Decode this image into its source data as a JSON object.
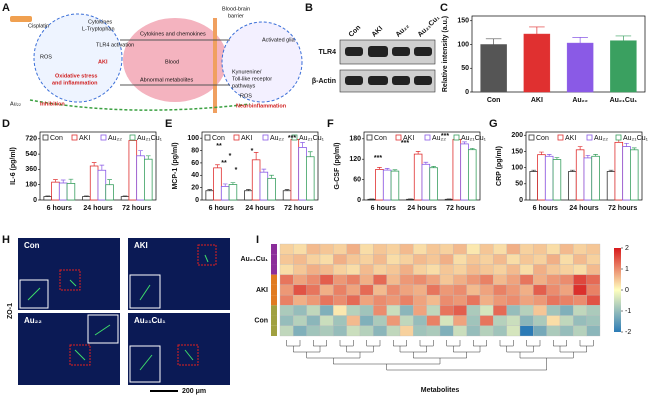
{
  "panels": {
    "letters": [
      "A",
      "B",
      "C",
      "D",
      "E",
      "F",
      "G",
      "H",
      "I"
    ],
    "a": {
      "cisplatin": "Cisplatin",
      "cytokines": "Cytokines",
      "tryptophan": "L-Tryptophan",
      "tlr4": "TLR4 activation",
      "ros1": "ROS",
      "aki": "AKI",
      "oxidative": "Oxidative stress",
      "inflammation": "and inflammation",
      "au22": "Au₂₂",
      "inhibition": "Inhibition",
      "chemokines": "Cytokines and chemokines",
      "blood": "Blood",
      "metabolites": "Abnormal metabolites",
      "bbb1": "Blood-brain",
      "bbb2": "barrier",
      "glia": "Activated glia",
      "path1": "Kynurenine/",
      "path2": "Toll-like receptor",
      "path3": "pathways",
      "ros2": "ROS",
      "neuro": "Neuroinflammation"
    },
    "b": {
      "lanes": [
        "Con",
        "AKI",
        "Au₂₂",
        "Au₂₁Cu₁"
      ],
      "rows": [
        "TLR4",
        "β-Actin"
      ]
    },
    "h": {
      "images": [
        "Con",
        "AKI",
        "Au₂₂",
        "Au₂₁Cu₁"
      ],
      "stain": "ZO-1",
      "scale": "200 μm"
    }
  },
  "chart_data": [
    {
      "type": "bar",
      "ylabel": "Relative intensity (a.u.)",
      "categories": [
        "Con",
        "AKI",
        "Au₂₂",
        "Au₂₁Cu₁"
      ],
      "values": [
        100,
        122,
        103,
        108
      ],
      "errors": [
        12,
        15,
        12,
        10
      ],
      "colors": [
        "#555555",
        "#e03030",
        "#8a5ae6",
        "#3aa060"
      ],
      "ylim": [
        0,
        160
      ],
      "yticks": [
        0,
        50,
        100,
        150
      ]
    },
    {
      "type": "bar",
      "ylabel": "IL-6 (pg/ml)",
      "categories": [
        "6 hours",
        "24 hours",
        "72 hours"
      ],
      "ylim": [
        0,
        800
      ],
      "yticks": [
        0,
        180,
        360,
        540,
        720
      ],
      "series": [
        {
          "name": "Con",
          "color": "#333333",
          "values": [
            40,
            40,
            40
          ],
          "errors": [
            8,
            8,
            8
          ]
        },
        {
          "name": "AKI",
          "color": "#e03030",
          "values": [
            210,
            400,
            700
          ],
          "errors": [
            30,
            40,
            30
          ]
        },
        {
          "name": "Au₂₂",
          "color": "#8a5ae6",
          "values": [
            200,
            350,
            520
          ],
          "errors": [
            35,
            60,
            60
          ]
        },
        {
          "name": "Au₂₁Cu₁",
          "color": "#3aa060",
          "values": [
            195,
            180,
            480
          ],
          "errors": [
            50,
            60,
            40
          ]
        }
      ]
    },
    {
      "type": "bar",
      "ylabel": "MCP-1 (pg/ml)",
      "categories": [
        "6 hours",
        "24 hours",
        "72 hours"
      ],
      "ylim": [
        0,
        110
      ],
      "yticks": [
        0,
        20,
        40,
        60,
        80,
        100
      ],
      "annotations": [
        "**",
        "*",
        "**",
        "*",
        "*",
        "***"
      ],
      "series": [
        {
          "name": "Con",
          "color": "#333333",
          "values": [
            15,
            15,
            15
          ],
          "errors": [
            2,
            2,
            2
          ]
        },
        {
          "name": "AKI",
          "color": "#e03030",
          "values": [
            52,
            65,
            98
          ],
          "errors": [
            5,
            12,
            6
          ]
        },
        {
          "name": "Au₂₂",
          "color": "#8a5ae6",
          "values": [
            22,
            45,
            85
          ],
          "errors": [
            4,
            5,
            8
          ]
        },
        {
          "name": "Au₂₁Cu₁",
          "color": "#3aa060",
          "values": [
            25,
            35,
            70
          ],
          "errors": [
            3,
            5,
            8
          ]
        }
      ]
    },
    {
      "type": "bar",
      "ylabel": "G-CSF (pg/ml)",
      "categories": [
        "6 hours",
        "24 hours",
        "72 hours"
      ],
      "ylim": [
        0,
        200
      ],
      "yticks": [
        0,
        60,
        120,
        180
      ],
      "annotations": [
        "***",
        "***",
        "***"
      ],
      "series": [
        {
          "name": "Con",
          "color": "#333333",
          "values": [
            2,
            2,
            2
          ],
          "errors": [
            1,
            1,
            1
          ]
        },
        {
          "name": "AKI",
          "color": "#e03030",
          "values": [
            90,
            135,
            178
          ],
          "errors": [
            6,
            8,
            10
          ]
        },
        {
          "name": "Au₂₂",
          "color": "#8a5ae6",
          "values": [
            88,
            105,
            165
          ],
          "errors": [
            5,
            6,
            6
          ]
        },
        {
          "name": "Au₂₁Cu₁",
          "color": "#3aa060",
          "values": [
            85,
            95,
            148
          ],
          "errors": [
            4,
            4,
            4
          ]
        }
      ]
    },
    {
      "type": "bar",
      "ylabel": "CRP (pg/ml)",
      "categories": [
        "6 hours",
        "24 hours",
        "72 hours"
      ],
      "ylim": [
        0,
        210
      ],
      "yticks": [
        0,
        50,
        100,
        150,
        200
      ],
      "series": [
        {
          "name": "Con",
          "color": "#333333",
          "values": [
            88,
            88,
            88
          ],
          "errors": [
            4,
            4,
            4
          ]
        },
        {
          "name": "AKI",
          "color": "#e03030",
          "values": [
            140,
            155,
            178
          ],
          "errors": [
            8,
            10,
            20
          ]
        },
        {
          "name": "Au₂₂",
          "color": "#8a5ae6",
          "values": [
            135,
            130,
            165
          ],
          "errors": [
            6,
            8,
            10
          ]
        },
        {
          "name": "Au₂₁Cu₁",
          "color": "#3aa060",
          "values": [
            125,
            135,
            155
          ],
          "errors": [
            6,
            6,
            6
          ]
        }
      ]
    },
    {
      "type": "heatmap",
      "xlabel": "Metabolites",
      "rows": [
        null,
        "Au₂₁Cu₁",
        null,
        null,
        "AKI",
        null,
        null,
        "Con",
        null
      ],
      "zlim": [
        -2,
        2
      ],
      "zticks": [
        2,
        1,
        0,
        -1,
        -2
      ],
      "values": [
        [
          0.4,
          0.3,
          0.6,
          0.5,
          0.4,
          0.7,
          0.3,
          0.5,
          0.4,
          0.6,
          0.3,
          0.5,
          0.4,
          0.6,
          0.2,
          0.5,
          0.3,
          0.7,
          0.4,
          0.5,
          0.3,
          0.6,
          0.4,
          0.5
        ],
        [
          0.5,
          0.6,
          0.4,
          0.3,
          0.7,
          0.5,
          0.4,
          0.6,
          0.3,
          0.4,
          0.6,
          0.5,
          0.7,
          0.3,
          0.5,
          0.4,
          0.6,
          0.3,
          0.5,
          0.4,
          0.7,
          0.3,
          0.6,
          0.4
        ],
        [
          0.3,
          0.5,
          0.7,
          0.6,
          0.4,
          0.3,
          0.6,
          0.4,
          0.5,
          0.7,
          0.4,
          0.3,
          0.5,
          0.4,
          0.6,
          0.5,
          0.4,
          0.6,
          0.3,
          0.7,
          0.5,
          0.4,
          0.3,
          0.6
        ],
        [
          1.2,
          0.8,
          1.0,
          1.4,
          0.9,
          1.1,
          0.7,
          1.3,
          0.6,
          0.9,
          1.0,
          0.8,
          0.5,
          0.7,
          0.9,
          1.1,
          0.6,
          0.8,
          1.2,
          0.7,
          0.9,
          1.0,
          1.6,
          1.3
        ],
        [
          0.9,
          1.5,
          1.2,
          0.7,
          1.1,
          0.8,
          1.3,
          0.6,
          1.0,
          0.8,
          0.7,
          1.2,
          0.9,
          1.0,
          0.6,
          0.8,
          1.1,
          0.9,
          0.7,
          1.4,
          1.0,
          0.8,
          1.8,
          1.1
        ],
        [
          1.1,
          0.7,
          0.9,
          1.2,
          1.0,
          1.3,
          0.8,
          1.0,
          0.9,
          1.1,
          0.8,
          0.6,
          1.0,
          0.9,
          1.2,
          0.7,
          0.9,
          1.0,
          0.8,
          0.9,
          1.2,
          1.1,
          1.0,
          1.5
        ],
        [
          -0.8,
          -1.0,
          -0.6,
          -1.2,
          0.2,
          -0.7,
          -0.9,
          1.0,
          -0.5,
          -1.1,
          0.8,
          -0.6,
          1.2,
          1.4,
          -0.8,
          -0.4,
          1.3,
          -1.0,
          -0.7,
          0.5,
          -0.9,
          -1.2,
          -0.6,
          -0.8
        ],
        [
          -1.0,
          -0.7,
          -1.1,
          -0.5,
          -0.9,
          0.6,
          -1.2,
          -0.8,
          0.9,
          -0.6,
          -1.0,
          1.1,
          -0.4,
          0.8,
          -0.9,
          1.2,
          -0.7,
          -0.5,
          -1.1,
          -0.8,
          0.3,
          -0.6,
          -1.0,
          -0.9
        ],
        [
          -0.6,
          -1.2,
          -0.9,
          -0.8,
          -1.0,
          -0.5,
          -0.7,
          -1.1,
          -0.6,
          0.4,
          -0.9,
          -0.8,
          -1.2,
          -0.5,
          -1.0,
          -0.7,
          -0.9,
          -0.4,
          -2.0,
          -1.3,
          -0.8,
          -1.0,
          -0.7,
          -1.1
        ]
      ]
    }
  ]
}
